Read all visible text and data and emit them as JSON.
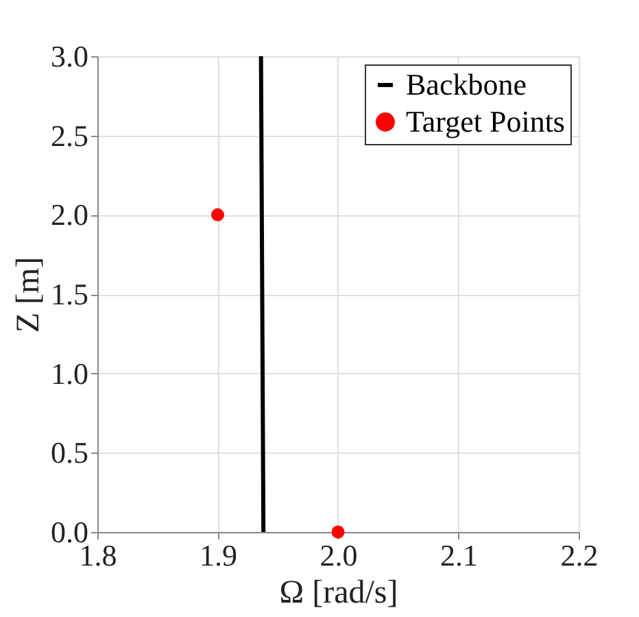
{
  "chart_data": {
    "type": "line",
    "xlabel": "Ω [rad/s]",
    "ylabel": "Z [m]",
    "series": [
      {
        "name": "Backbone",
        "color": "#000000",
        "x": [
          1.936,
          1.938
        ],
        "values": [
          3.0,
          0.0
        ],
        "marker": "none",
        "line_style": "solid"
      },
      {
        "name": "Target Points",
        "type": "scatter",
        "color": "#ff0000",
        "x": [
          1.9,
          2.0
        ],
        "values": [
          2.0,
          0.0
        ],
        "marker": "circle"
      }
    ],
    "xlim": [
      1.8,
      2.2
    ],
    "ylim": [
      0,
      3
    ],
    "xticks": [
      1.8,
      1.9,
      {
        "value": 2,
        "label": "2.0"
      },
      2.1,
      2.2
    ],
    "yticks": [
      {
        "value": 0,
        "label": "0.0"
      },
      0.5,
      {
        "value": 1,
        "label": "1.0"
      },
      1.5,
      {
        "value": 2,
        "label": "2.0"
      },
      2.5,
      {
        "value": 3,
        "label": "3.0"
      }
    ],
    "grid": true,
    "legend": "top right"
  }
}
